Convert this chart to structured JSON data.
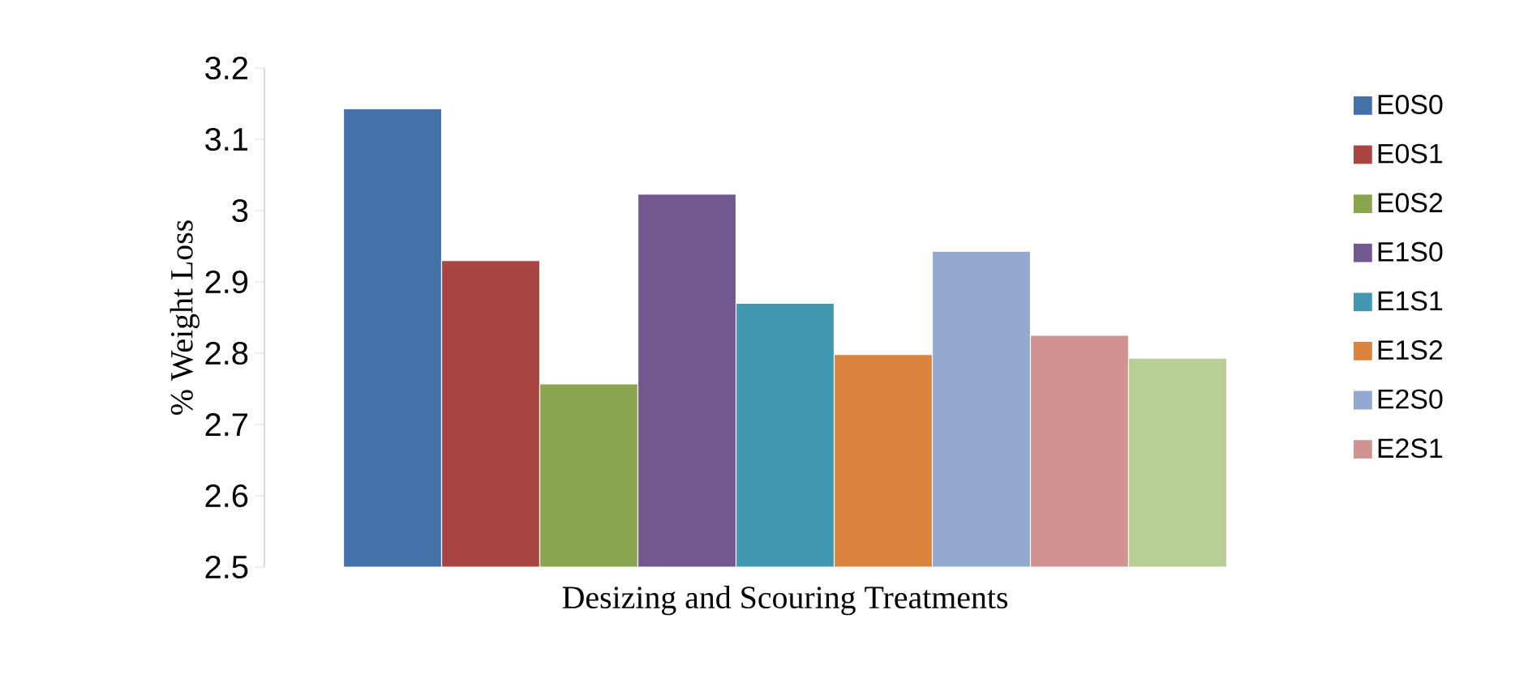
{
  "chart_data": {
    "type": "bar",
    "xlabel": "Desizing and Scouring Treatments",
    "ylabel": "% Weight Loss",
    "categories": [
      null
    ],
    "series": [
      {
        "name": "E0S0",
        "color": "#4472a8",
        "values": [
          3.143
        ]
      },
      {
        "name": "E0S1",
        "color": "#a94543",
        "values": [
          2.93
        ]
      },
      {
        "name": "E0S2",
        "color": "#89a54e",
        "values": [
          2.757
        ]
      },
      {
        "name": "E1S0",
        "color": "#71588f",
        "values": [
          3.023
        ]
      },
      {
        "name": "E1S1",
        "color": "#4198af",
        "values": [
          2.87
        ]
      },
      {
        "name": "E1S2",
        "color": "#db843d",
        "values": [
          2.798
        ]
      },
      {
        "name": "E2S0",
        "color": "#93a9cf",
        "values": [
          2.943
        ]
      },
      {
        "name": "E2S1",
        "color": "#d19392",
        "values": [
          2.825
        ]
      },
      {
        "color": "#b9cd96",
        "values": [
          2.793
        ]
      }
    ],
    "ylim": [
      2.5,
      3.2
    ],
    "yticks": [
      2.5,
      2.6,
      2.7,
      2.8,
      2.9,
      3,
      3.1,
      3.2
    ],
    "legend": "right",
    "grid": false
  }
}
